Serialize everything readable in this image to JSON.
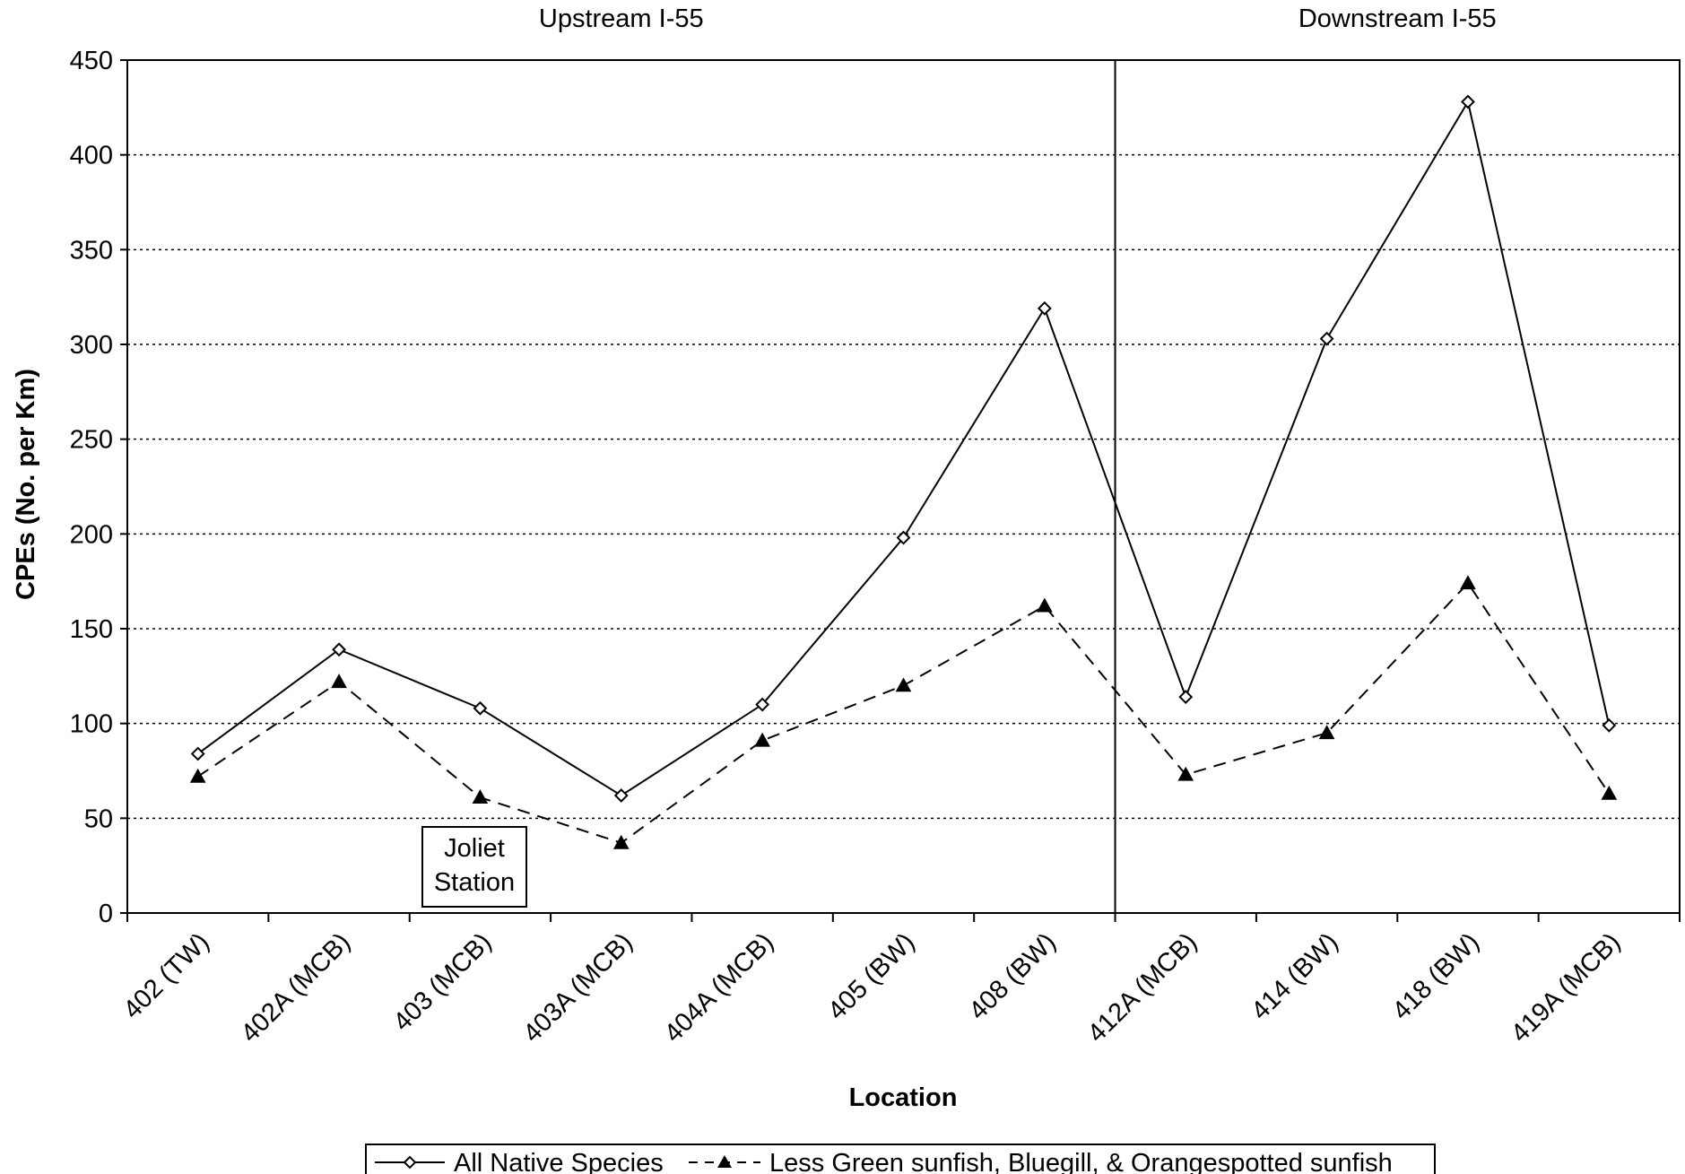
{
  "chart_data": {
    "type": "line",
    "title": "",
    "xlabel": "Location",
    "ylabel": "CPEs (No. per Km)",
    "ylim": [
      0,
      450
    ],
    "yticks": [
      0,
      50,
      100,
      150,
      200,
      250,
      300,
      350,
      400,
      450
    ],
    "grid": true,
    "legend_position": "bottom",
    "categories": [
      "402 (TW)",
      "402A (MCB)",
      "403 (MCB)",
      "403A (MCB)",
      "404A (MCB)",
      "405 (BW)",
      "408 (BW)",
      "412A (MCB)",
      "414 (BW)",
      "418 (BW)",
      "419A (MCB)"
    ],
    "series": [
      {
        "name": "All Native Species",
        "values": [
          84,
          139,
          108,
          62,
          110,
          198,
          319,
          114,
          303,
          428,
          99
        ],
        "marker": "open-diamond",
        "line_style": "solid",
        "color": "#000000"
      },
      {
        "name": "Less Green sunfish, Bluegill, & Orangespotted sunfish",
        "values": [
          72,
          122,
          61,
          37,
          91,
          120,
          162,
          73,
          95,
          174,
          63
        ],
        "marker": "filled-triangle",
        "line_style": "dashed",
        "color": "#000000"
      }
    ],
    "regions": [
      "Upstream I-55",
      "Downstream I-55"
    ],
    "divider_after_category": "408 (BW)",
    "annotation": "Joliet\nStation"
  }
}
